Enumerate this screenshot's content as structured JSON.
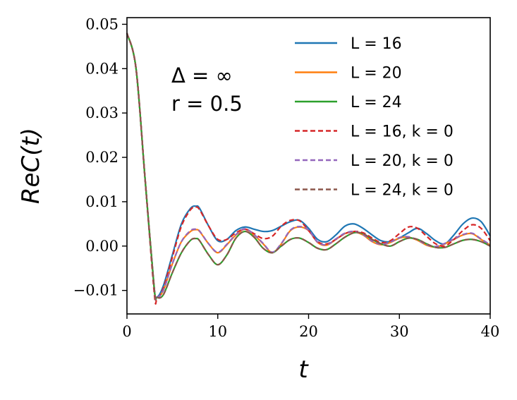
{
  "chart_data": {
    "type": "line",
    "xlabel": "ReC(t)",
    "ylabel_text": "ReC(t)",
    "x_axis_label": "t",
    "xlim": [
      0,
      40
    ],
    "ylim": [
      -0.0153,
      0.0515
    ],
    "xticks": [
      0,
      10,
      20,
      30,
      40
    ],
    "xtick_labels": [
      "0",
      "10",
      "20",
      "30",
      "40"
    ],
    "yticks": [
      -0.01,
      0.0,
      0.01,
      0.02,
      0.03,
      0.04,
      0.05
    ],
    "ytick_labels": [
      "−0.01",
      "0.00",
      "0.01",
      "0.02",
      "0.03",
      "0.04",
      "0.05"
    ],
    "grid": false,
    "legend_position": "top-right",
    "annotations": [
      "Δ = ∞",
      "r = 0.5"
    ],
    "series": [
      {
        "name": "L = 16",
        "color": "#1f77b4",
        "dash": "solid",
        "x": [
          0,
          1,
          2,
          3,
          3.3,
          4,
          5,
          6,
          7,
          7.6,
          8,
          9,
          10,
          11,
          12,
          13,
          14,
          15,
          16,
          17,
          18,
          19,
          20,
          21,
          22,
          23,
          24,
          25,
          26,
          27,
          28,
          29,
          30,
          31,
          32,
          33,
          34,
          35,
          36,
          37,
          38,
          39,
          40
        ],
        "y": [
          0.048,
          0.04,
          0.015,
          -0.0095,
          -0.0115,
          -0.009,
          -0.002,
          0.005,
          0.0085,
          0.009,
          0.0085,
          0.0045,
          0.0012,
          0.0015,
          0.0035,
          0.0043,
          0.0038,
          0.0033,
          0.0035,
          0.0045,
          0.0055,
          0.0058,
          0.004,
          0.0015,
          0.001,
          0.0025,
          0.0045,
          0.005,
          0.004,
          0.0025,
          0.0012,
          0.001,
          0.0018,
          0.003,
          0.004,
          0.0028,
          0.0012,
          0.0005,
          0.0025,
          0.005,
          0.0063,
          0.0055,
          0.0023
        ]
      },
      {
        "name": "L = 20",
        "color": "#ff7f0e",
        "dash": "solid",
        "x": [
          0,
          1,
          2,
          3,
          3.3,
          4,
          5,
          6,
          7,
          7.6,
          8,
          9,
          10,
          11,
          12,
          13,
          14,
          15,
          16,
          17,
          18,
          19,
          20,
          21,
          22,
          23,
          24,
          25,
          26,
          27,
          28,
          29,
          30,
          31,
          32,
          33,
          34,
          35,
          36,
          37,
          38,
          39,
          40
        ],
        "y": [
          0.048,
          0.04,
          0.015,
          -0.0095,
          -0.0115,
          -0.01,
          -0.004,
          0.001,
          0.0033,
          0.0037,
          0.0033,
          0.0005,
          -0.0015,
          0.0003,
          0.0025,
          0.0038,
          0.0025,
          0.0005,
          -0.0015,
          0.0005,
          0.0035,
          0.0043,
          0.0035,
          0.0008,
          0.0002,
          0.0015,
          0.0028,
          0.0032,
          0.0025,
          0.001,
          0.0003,
          0.0008,
          0.0018,
          0.002,
          0.0013,
          0.0002,
          -0.0002,
          0.0005,
          0.0015,
          0.0025,
          0.0028,
          0.0015,
          0.0002
        ]
      },
      {
        "name": "L = 24",
        "color": "#2ca02c",
        "dash": "solid",
        "x": [
          0,
          1,
          2,
          3,
          3.3,
          4,
          5,
          6,
          7,
          7.6,
          8,
          9,
          10,
          11,
          12,
          13,
          14,
          15,
          16,
          17,
          18,
          19,
          20,
          21,
          22,
          23,
          24,
          25,
          26,
          27,
          28,
          29,
          30,
          31,
          32,
          33,
          34,
          35,
          36,
          37,
          38,
          39,
          40
        ],
        "y": [
          0.048,
          0.04,
          0.015,
          -0.0095,
          -0.0115,
          -0.011,
          -0.006,
          -0.0015,
          0.0013,
          0.0017,
          0.0012,
          -0.002,
          -0.0042,
          -0.002,
          0.0018,
          0.0033,
          0.002,
          -0.0005,
          -0.0015,
          0.0,
          0.0015,
          0.0018,
          0.0008,
          -0.0005,
          -0.0008,
          0.0005,
          0.002,
          0.003,
          0.0028,
          0.0015,
          0.0005,
          0.0,
          0.001,
          0.0018,
          0.0015,
          0.0005,
          -0.0003,
          -0.0003,
          0.0005,
          0.0013,
          0.0015,
          0.001,
          0.0
        ]
      },
      {
        "name": "L = 16, k = 0",
        "color": "#d62728",
        "dash": "dashed",
        "x": [
          0,
          1,
          2,
          3,
          3.3,
          4,
          5,
          6,
          7,
          7.6,
          8,
          9,
          10,
          11,
          12,
          13,
          14,
          15,
          16,
          17,
          18,
          19,
          20,
          21,
          22,
          23,
          24,
          25,
          26,
          27,
          28,
          29,
          30,
          31,
          32,
          33,
          34,
          35,
          36,
          37,
          38,
          39,
          40
        ],
        "y": [
          0.048,
          0.04,
          0.015,
          -0.0105,
          -0.012,
          -0.0095,
          -0.0025,
          0.0045,
          0.0082,
          0.0088,
          0.0082,
          0.0045,
          0.0015,
          0.0015,
          0.003,
          0.0038,
          0.0028,
          0.0017,
          0.0022,
          0.0045,
          0.0058,
          0.0057,
          0.0035,
          0.001,
          0.0005,
          0.0015,
          0.0028,
          0.0033,
          0.003,
          0.0018,
          0.0008,
          0.0012,
          0.0028,
          0.0043,
          0.004,
          0.0022,
          0.0005,
          0.0,
          0.0015,
          0.0035,
          0.0048,
          0.004,
          0.0012
        ]
      },
      {
        "name": "L = 20, k = 0",
        "color": "#9467bd",
        "dash": "dashed",
        "x": [
          0,
          1,
          2,
          3,
          3.3,
          4,
          5,
          6,
          7,
          7.6,
          8,
          9,
          10,
          11,
          12,
          13,
          14,
          15,
          16,
          17,
          18,
          19,
          20,
          21,
          22,
          23,
          24,
          25,
          26,
          27,
          28,
          29,
          30,
          31,
          32,
          33,
          34,
          35,
          36,
          37,
          38,
          39,
          40
        ],
        "y": [
          0.048,
          0.04,
          0.015,
          -0.0095,
          -0.0115,
          -0.01,
          -0.004,
          0.001,
          0.0035,
          0.0038,
          0.0034,
          0.0005,
          -0.0014,
          0.0004,
          0.0026,
          0.0039,
          0.0026,
          0.0006,
          -0.0014,
          0.0006,
          0.0036,
          0.0044,
          0.0036,
          0.0009,
          0.0003,
          0.0016,
          0.0029,
          0.0033,
          0.0026,
          0.0011,
          0.0004,
          0.0009,
          0.0019,
          0.0021,
          0.0014,
          0.0003,
          -0.0001,
          0.0006,
          0.0016,
          0.0026,
          0.0029,
          0.0016,
          0.0003
        ]
      },
      {
        "name": "L = 24, k = 0",
        "color": "#8c564b",
        "dash": "dashed",
        "x": [
          0,
          1,
          2,
          3,
          3.3,
          4,
          5,
          6,
          7,
          7.6,
          8,
          9,
          10,
          11,
          12,
          13,
          14,
          15,
          16,
          17,
          18,
          19,
          20,
          21,
          22,
          23,
          24,
          25,
          26,
          27,
          28,
          29,
          30,
          31,
          32,
          33,
          34,
          35,
          36,
          37,
          38,
          39,
          40
        ],
        "y": [
          0.048,
          0.04,
          0.015,
          -0.0095,
          -0.0115,
          -0.011,
          -0.006,
          -0.0015,
          0.0013,
          0.0017,
          0.0012,
          -0.002,
          -0.0042,
          -0.002,
          0.0018,
          0.0033,
          0.002,
          -0.0005,
          -0.0015,
          0.0,
          0.0015,
          0.0018,
          0.0008,
          -0.0005,
          -0.0008,
          0.0005,
          0.002,
          0.003,
          0.0028,
          0.0015,
          0.0005,
          0.0,
          0.001,
          0.0018,
          0.0015,
          0.0005,
          -0.0003,
          -0.0003,
          0.0005,
          0.0013,
          0.0015,
          0.001,
          0.0
        ]
      }
    ]
  }
}
